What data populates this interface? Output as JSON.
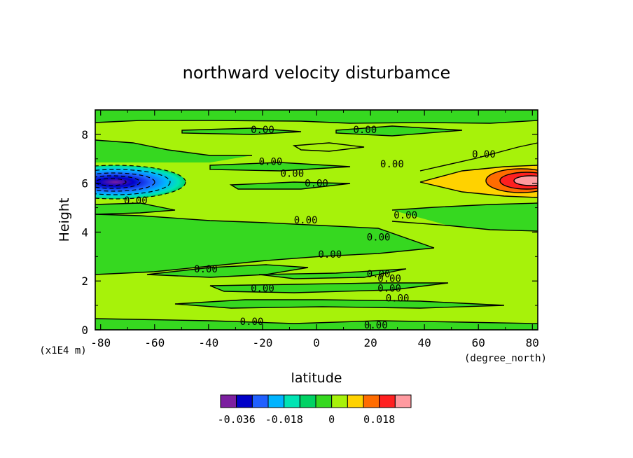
{
  "chart_data": {
    "type": "heatmap",
    "title": "northward velocity disturbamce",
    "xlabel": "latitude",
    "ylabel": "Height",
    "x_unit": "(degree_north)",
    "y_unit": "(x1E4 m)",
    "xlim": [
      -82,
      82
    ],
    "ylim": [
      0,
      9
    ],
    "x_ticks": [
      "-80",
      "-60",
      "-40",
      "-20",
      "0",
      "20",
      "40",
      "60",
      "80"
    ],
    "x_tick_values": [
      -80,
      -60,
      -40,
      -20,
      0,
      20,
      40,
      60,
      80
    ],
    "y_ticks": [
      "0",
      "2",
      "4",
      "6",
      "8"
    ],
    "y_tick_values": [
      0,
      2,
      4,
      6,
      8
    ],
    "background_level_color": "#a7f20a",
    "features": [
      {
        "kind": "minimum",
        "lat": -74,
        "height": 6.1,
        "value": -0.036
      },
      {
        "kind": "maximum",
        "lat": 76,
        "height": 6.1,
        "value": 0.024
      }
    ],
    "contour_labels": [
      {
        "text": "0.00",
        "lat": -20,
        "height": 8.2
      },
      {
        "text": "0.00",
        "lat": 18,
        "height": 8.2
      },
      {
        "text": "0.00",
        "lat": 62,
        "height": 7.2
      },
      {
        "text": "0.00",
        "lat": -17,
        "height": 6.9
      },
      {
        "text": "0.00",
        "lat": 28,
        "height": 6.8
      },
      {
        "text": "0.00",
        "lat": -9,
        "height": 6.4
      },
      {
        "text": "0.00",
        "lat": 0,
        "height": 6.0
      },
      {
        "text": "0.00",
        "lat": -67,
        "height": 5.3
      },
      {
        "text": "0.00",
        "lat": -4,
        "height": 4.5
      },
      {
        "text": "0.00",
        "lat": 33,
        "height": 4.7
      },
      {
        "text": "0.00",
        "lat": 23,
        "height": 3.8
      },
      {
        "text": "0.00",
        "lat": 5,
        "height": 3.1
      },
      {
        "text": "0.00",
        "lat": -41,
        "height": 2.5
      },
      {
        "text": "0.00",
        "lat": 23,
        "height": 2.3
      },
      {
        "text": "0.00",
        "lat": 27,
        "height": 2.1
      },
      {
        "text": "0.00",
        "lat": 27,
        "height": 1.7
      },
      {
        "text": "0.00",
        "lat": 30,
        "height": 1.3
      },
      {
        "text": "0.00",
        "lat": -20,
        "height": 1.7
      },
      {
        "text": "0.00",
        "lat": -24,
        "height": 0.35
      },
      {
        "text": "0.00",
        "lat": 22,
        "height": 0.2
      }
    ],
    "colorbar": {
      "colors": [
        "#7c1fa0",
        "#0000c8",
        "#2060ff",
        "#00b4ff",
        "#00e4b4",
        "#00d264",
        "#36d820",
        "#a7f20a",
        "#ffd200",
        "#ff6c00",
        "#ff2020",
        "#ff9aa0"
      ],
      "tick_labels": [
        "-0.036",
        "-0.018",
        "0",
        "0.018"
      ],
      "tick_values": [
        -0.036,
        -0.018,
        0,
        0.018
      ],
      "step": 0.006,
      "min": -0.042,
      "max": 0.03
    }
  }
}
